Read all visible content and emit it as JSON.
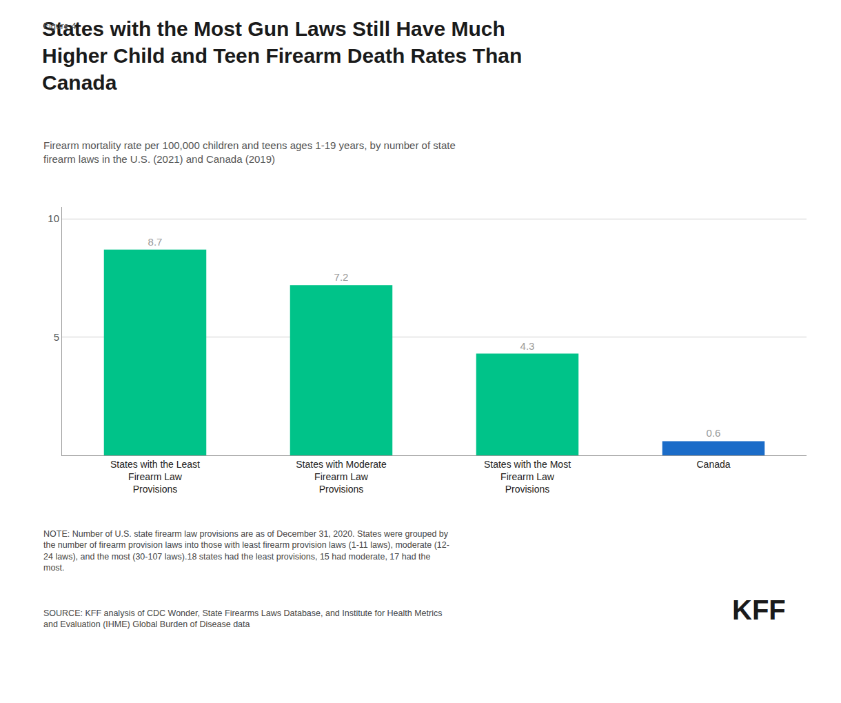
{
  "chart_data": {
    "type": "bar",
    "figure_label": "Figure 4",
    "title": "States with the Most Gun Laws Still Have Much\nHigher Child and Teen Firearm Death Rates Than\nCanada",
    "subtitle": "Firearm mortality rate per 100,000 children and teens ages 1-19 years, by number of state\nfirearm laws in the U.S. (2021) and Canada (2019)",
    "categories": [
      "States with the Least\nFirearm Law\nProvisions",
      "States with Moderate\nFirearm Law\nProvisions",
      "States with the Most\nFirearm Law\nProvisions",
      "Canada"
    ],
    "values": [
      8.7,
      7.2,
      4.3,
      0.6
    ],
    "colors": [
      "#00C389",
      "#00C389",
      "#00C389",
      "#1B6CC8"
    ],
    "ylim": [
      0,
      10.5
    ],
    "yticks": [
      5,
      10
    ],
    "grid": true,
    "data_labels": true,
    "note": "NOTE: Number of U.S. state firearm law provisions are as of December 31, 2020. States were grouped by\nthe number of firearm provision laws into those with least firearm provision laws (1-11 laws), moderate (12-\n24 laws), and the most (30-107 laws).18 states had the least provisions, 15 had moderate, 17 had the\nmost.",
    "source": "SOURCE: KFF analysis of CDC Wonder, State Firearms Laws Database, and Institute for Health Metrics\nand Evaluation (IHME) Global Burden of Disease data",
    "logo": "KFF"
  }
}
